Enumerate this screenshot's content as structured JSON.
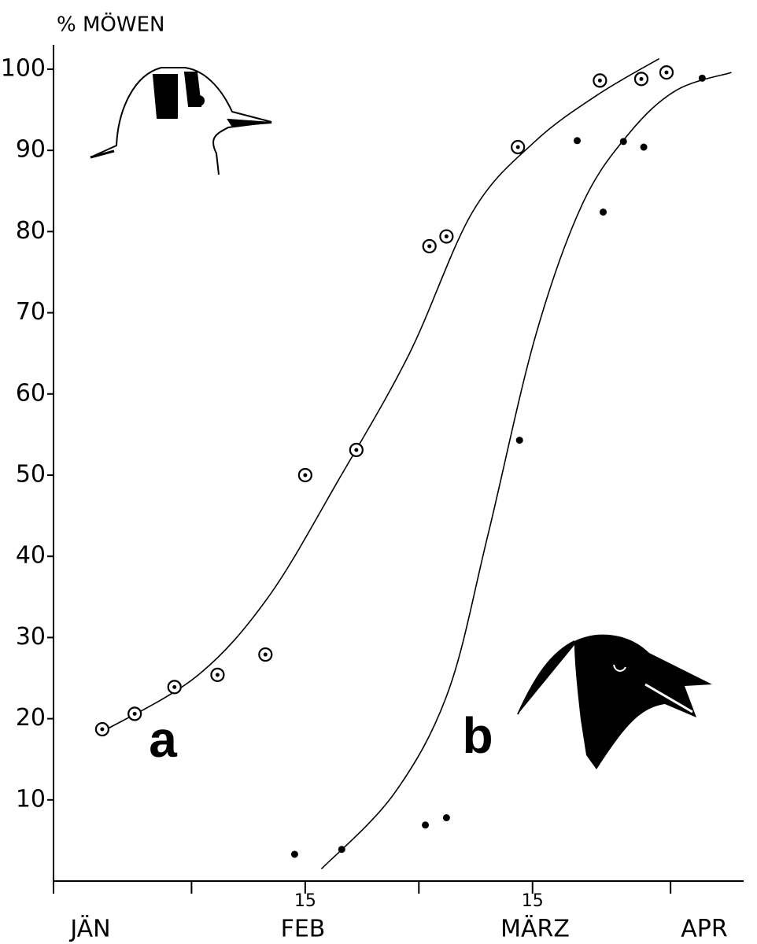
{
  "chart_data": {
    "type": "scatter",
    "y_axis_label": "% MÖWEN",
    "xlim": [
      15,
      100
    ],
    "ylim": [
      0,
      103
    ],
    "yticks": [
      10,
      20,
      30,
      40,
      50,
      60,
      70,
      80,
      90,
      100
    ],
    "xticks": [
      {
        "value": 46,
        "label": "15"
      },
      {
        "value": 74,
        "label": "15"
      }
    ],
    "minor_xticks": [
      15,
      32,
      60,
      91
    ],
    "month_labels": [
      "JÄN",
      "FEB",
      "MÄRZ",
      "APR"
    ],
    "series": [
      {
        "name": "a",
        "marker": "ring",
        "color": "#000000",
        "x": [
          21.0,
          25.0,
          29.9,
          35.2,
          41.1,
          46.0,
          52.3,
          61.3,
          63.4,
          72.2,
          82.3,
          87.4,
          90.5
        ],
        "values": [
          18.7,
          20.6,
          23.9,
          25.4,
          27.9,
          50,
          53.1,
          78.2,
          79.4,
          90.4,
          98.6,
          98.8,
          99.6
        ],
        "curve_x": [
          21.0,
          32.6,
          41.4,
          50.1,
          58.8,
          66.6,
          74.3,
          82.1,
          89.6
        ],
        "curve_values": [
          18.4,
          25.2,
          34.9,
          49.4,
          64.9,
          82.4,
          91.1,
          96.9,
          101.3
        ]
      },
      {
        "name": "b",
        "marker": "dot",
        "color": "#000000",
        "x": [
          44.7,
          50.5,
          60.8,
          63.4,
          72.4,
          79.5,
          82.7,
          85.2,
          87.7,
          94.9
        ],
        "values": [
          3.3,
          3.9,
          6.9,
          7.8,
          54.3,
          91.2,
          82.4,
          91.1,
          90.4,
          98.9
        ],
        "curve_x": [
          48.0,
          56.9,
          63.6,
          68.5,
          74.3,
          80.1,
          85.9,
          91.7,
          98.5
        ],
        "curve_values": [
          1.5,
          10.7,
          23.3,
          42.6,
          66.9,
          83.3,
          92.1,
          97.4,
          99.6
        ]
      }
    ]
  }
}
